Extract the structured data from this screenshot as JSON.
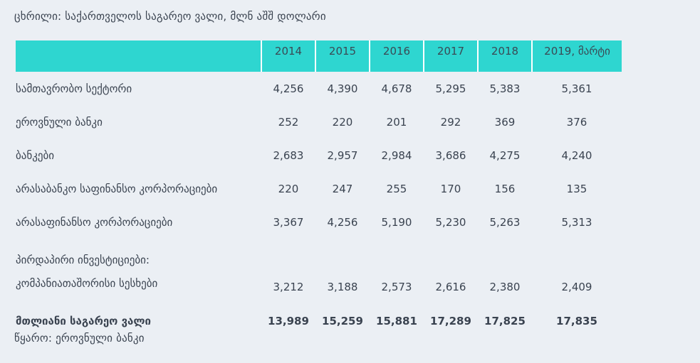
{
  "caption": "ცხრილი: საქართველოს საგარეო ვალი, მლნ აშშ დოლარი",
  "header": {
    "columns": [
      "",
      "2014",
      "2015",
      "2016",
      "2017",
      "2018",
      "2019, მარტი"
    ]
  },
  "rows": [
    {
      "label": "სამთავრობო სექტორი",
      "values": [
        "4,256",
        "4,390",
        "4,678",
        "5,295",
        "5,383",
        "5,361"
      ]
    },
    {
      "label": "ეროვნული ბანკი",
      "values": [
        "252",
        "220",
        "201",
        "292",
        "369",
        "376"
      ]
    },
    {
      "label": "ბანკები",
      "values": [
        "2,683",
        "2,957",
        "2,984",
        "3,686",
        "4,275",
        "4,240"
      ]
    },
    {
      "label": "არასაბანკო საფინანსო კორპორაციები",
      "values": [
        "220",
        "247",
        "255",
        "170",
        "156",
        "135"
      ]
    },
    {
      "label": "არასაფინანსო კორპორაციები",
      "values": [
        "3,367",
        "4,256",
        "5,190",
        "5,230",
        "5,263",
        "5,313"
      ]
    },
    {
      "label": "პირდაპირი ინვესტიციები:",
      "label2": "კომპანიათაშორისი სესხები",
      "values": [
        "3,212",
        "3,188",
        "2,573",
        "2,616",
        "2,380",
        "2,409"
      ]
    }
  ],
  "total": {
    "label": "მთლიანი საგარეო ვალი",
    "values": [
      "13,989",
      "15,259",
      "15,881",
      "17,289",
      "17,825",
      "17,835"
    ]
  },
  "source": "წყარო: ეროვნული ბანკი",
  "colors": {
    "header_bg": "#2ed6d0",
    "page_bg": "#ebeff4",
    "text": "#3a4350"
  }
}
